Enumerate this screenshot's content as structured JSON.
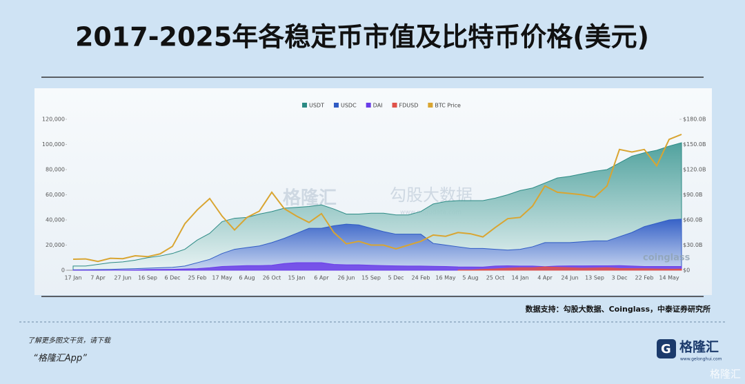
{
  "title": "2017-2025年各稳定币市值及比特币价格(美元)",
  "source": "数据支持：勾股大数据、Coinglass，中泰证券研究所",
  "footer": {
    "line1": "了解更多图文干货，请下载",
    "line2": "“格隆汇App”"
  },
  "logo": {
    "name": "格隆汇",
    "url": "www.gelonghui.com"
  },
  "watermarks": {
    "brand": "格隆汇",
    "data": "勾股大数据",
    "url": "www.gogudata.com",
    "coinglass": "coinglass",
    "corner": "格隆汇"
  },
  "chart_data": {
    "type": "area",
    "categories": [
      "17 Jan",
      null,
      "7 Apr",
      null,
      "27 Jun",
      null,
      "16 Sep",
      null,
      "6 Dec",
      null,
      "25 Feb",
      null,
      "17 May",
      null,
      "6 Aug",
      null,
      "26 Oct",
      null,
      "15 Jan",
      null,
      "6 Apr",
      null,
      "26 Jun",
      null,
      "15 Sep",
      null,
      "5 Dec",
      null,
      "24 Feb",
      null,
      "16 May",
      null,
      "5 Aug",
      null,
      "25 Oct",
      null,
      "14 Jan",
      null,
      "4 Apr",
      null,
      "24 Jun",
      null,
      "13 Sep",
      null,
      "3 Dec",
      null,
      "22 Feb",
      null,
      "14 May",
      null
    ],
    "series": [
      {
        "name": "USDT",
        "color": "#2b8a84",
        "axis": "y2",
        "type": "area",
        "values": [
          5,
          5,
          7,
          9,
          10,
          12,
          15,
          17,
          20,
          25,
          36,
          44,
          58,
          62,
          63,
          67,
          70,
          74,
          75,
          76,
          78,
          73,
          67,
          67,
          68,
          68,
          66,
          66,
          70,
          79,
          82,
          83,
          83,
          83,
          86,
          90,
          95,
          98,
          104,
          110,
          112,
          115,
          118,
          120,
          128,
          136,
          140,
          143,
          148,
          152
        ]
      },
      {
        "name": "USDC",
        "color": "#2f5bc4",
        "axis": "y2",
        "type": "area",
        "values": [
          0.5,
          0.6,
          0.8,
          1,
          1.5,
          2,
          2.5,
          3,
          3.5,
          5,
          9,
          13,
          20,
          25,
          27,
          29,
          33,
          38,
          44,
          50,
          50,
          53,
          55,
          54,
          50,
          46,
          43,
          43,
          43,
          32,
          30,
          28,
          26,
          26,
          25,
          24,
          25,
          28,
          33,
          33,
          33,
          34,
          35,
          35,
          40,
          45,
          52,
          56,
          60,
          61
        ]
      },
      {
        "name": "DAI",
        "color": "#6a3de8",
        "axis": "y2",
        "type": "area",
        "values": [
          0.1,
          0.1,
          0.1,
          0.1,
          0.2,
          0.4,
          0.9,
          1,
          1.1,
          1.5,
          2,
          3,
          4.5,
          5,
          5.5,
          5.5,
          6,
          8,
          9,
          9,
          9,
          7,
          6.5,
          6.5,
          6,
          5.5,
          5.2,
          5,
          5,
          4.7,
          4.5,
          4,
          3.9,
          3.8,
          5,
          5.3,
          5,
          5,
          4.3,
          5,
          5.2,
          5.2,
          5.3,
          5.3,
          5.5,
          5,
          4.5,
          4.5,
          4.5,
          4.5
        ]
      },
      {
        "name": "FDUSD",
        "color": "#e0524a",
        "axis": "y2",
        "type": "area",
        "values": [
          null,
          null,
          null,
          null,
          null,
          null,
          null,
          null,
          null,
          null,
          null,
          null,
          null,
          null,
          null,
          null,
          null,
          null,
          null,
          null,
          null,
          null,
          null,
          null,
          null,
          null,
          null,
          null,
          null,
          null,
          null,
          0.3,
          0.3,
          1,
          1.6,
          2.5,
          3,
          3,
          4,
          3.5,
          3,
          2.5,
          2.7,
          3,
          2.2,
          2,
          1.8,
          1.5,
          1.3,
          1.4
        ]
      },
      {
        "name": "BTC Price",
        "color": "#d9a531",
        "axis": "y",
        "type": "line",
        "values": [
          8800,
          9000,
          7000,
          9500,
          9200,
          11500,
          10800,
          13000,
          19000,
          37000,
          48000,
          57000,
          43000,
          32000,
          42000,
          47000,
          62000,
          49000,
          43000,
          38000,
          45000,
          30000,
          21000,
          23000,
          20000,
          20000,
          17000,
          20000,
          23000,
          28000,
          27000,
          30000,
          29000,
          26500,
          34000,
          41000,
          42000,
          51000,
          67000,
          62000,
          61000,
          60000,
          58000,
          67000,
          96000,
          94000,
          96000,
          83000,
          104000,
          108000
        ]
      }
    ],
    "ylim": [
      0,
      120000
    ],
    "yticks": [
      0,
      {
        "value": 20000,
        "label": "20,000"
      },
      {
        "value": 40000,
        "label": "40,000"
      },
      {
        "value": 60000,
        "label": "60,000"
      },
      {
        "value": 80000,
        "label": "80,000"
      },
      {
        "value": 100000,
        "label": "100,000"
      },
      {
        "value": 120000,
        "label": "120,000"
      }
    ],
    "y2lim": [
      0,
      180
    ],
    "y2ticks": [
      {
        "value": 0,
        "label": "$0"
      },
      {
        "value": 30,
        "label": "$30.0B"
      },
      {
        "value": 60,
        "label": "$60.0B"
      },
      {
        "value": 90,
        "label": "$90.0B"
      },
      {
        "value": 120,
        "label": "$120.0B"
      },
      {
        "value": 150,
        "label": "$150.0B"
      },
      {
        "value": 180,
        "label": "$180.0B"
      }
    ],
    "grid": false,
    "legend": "top"
  }
}
